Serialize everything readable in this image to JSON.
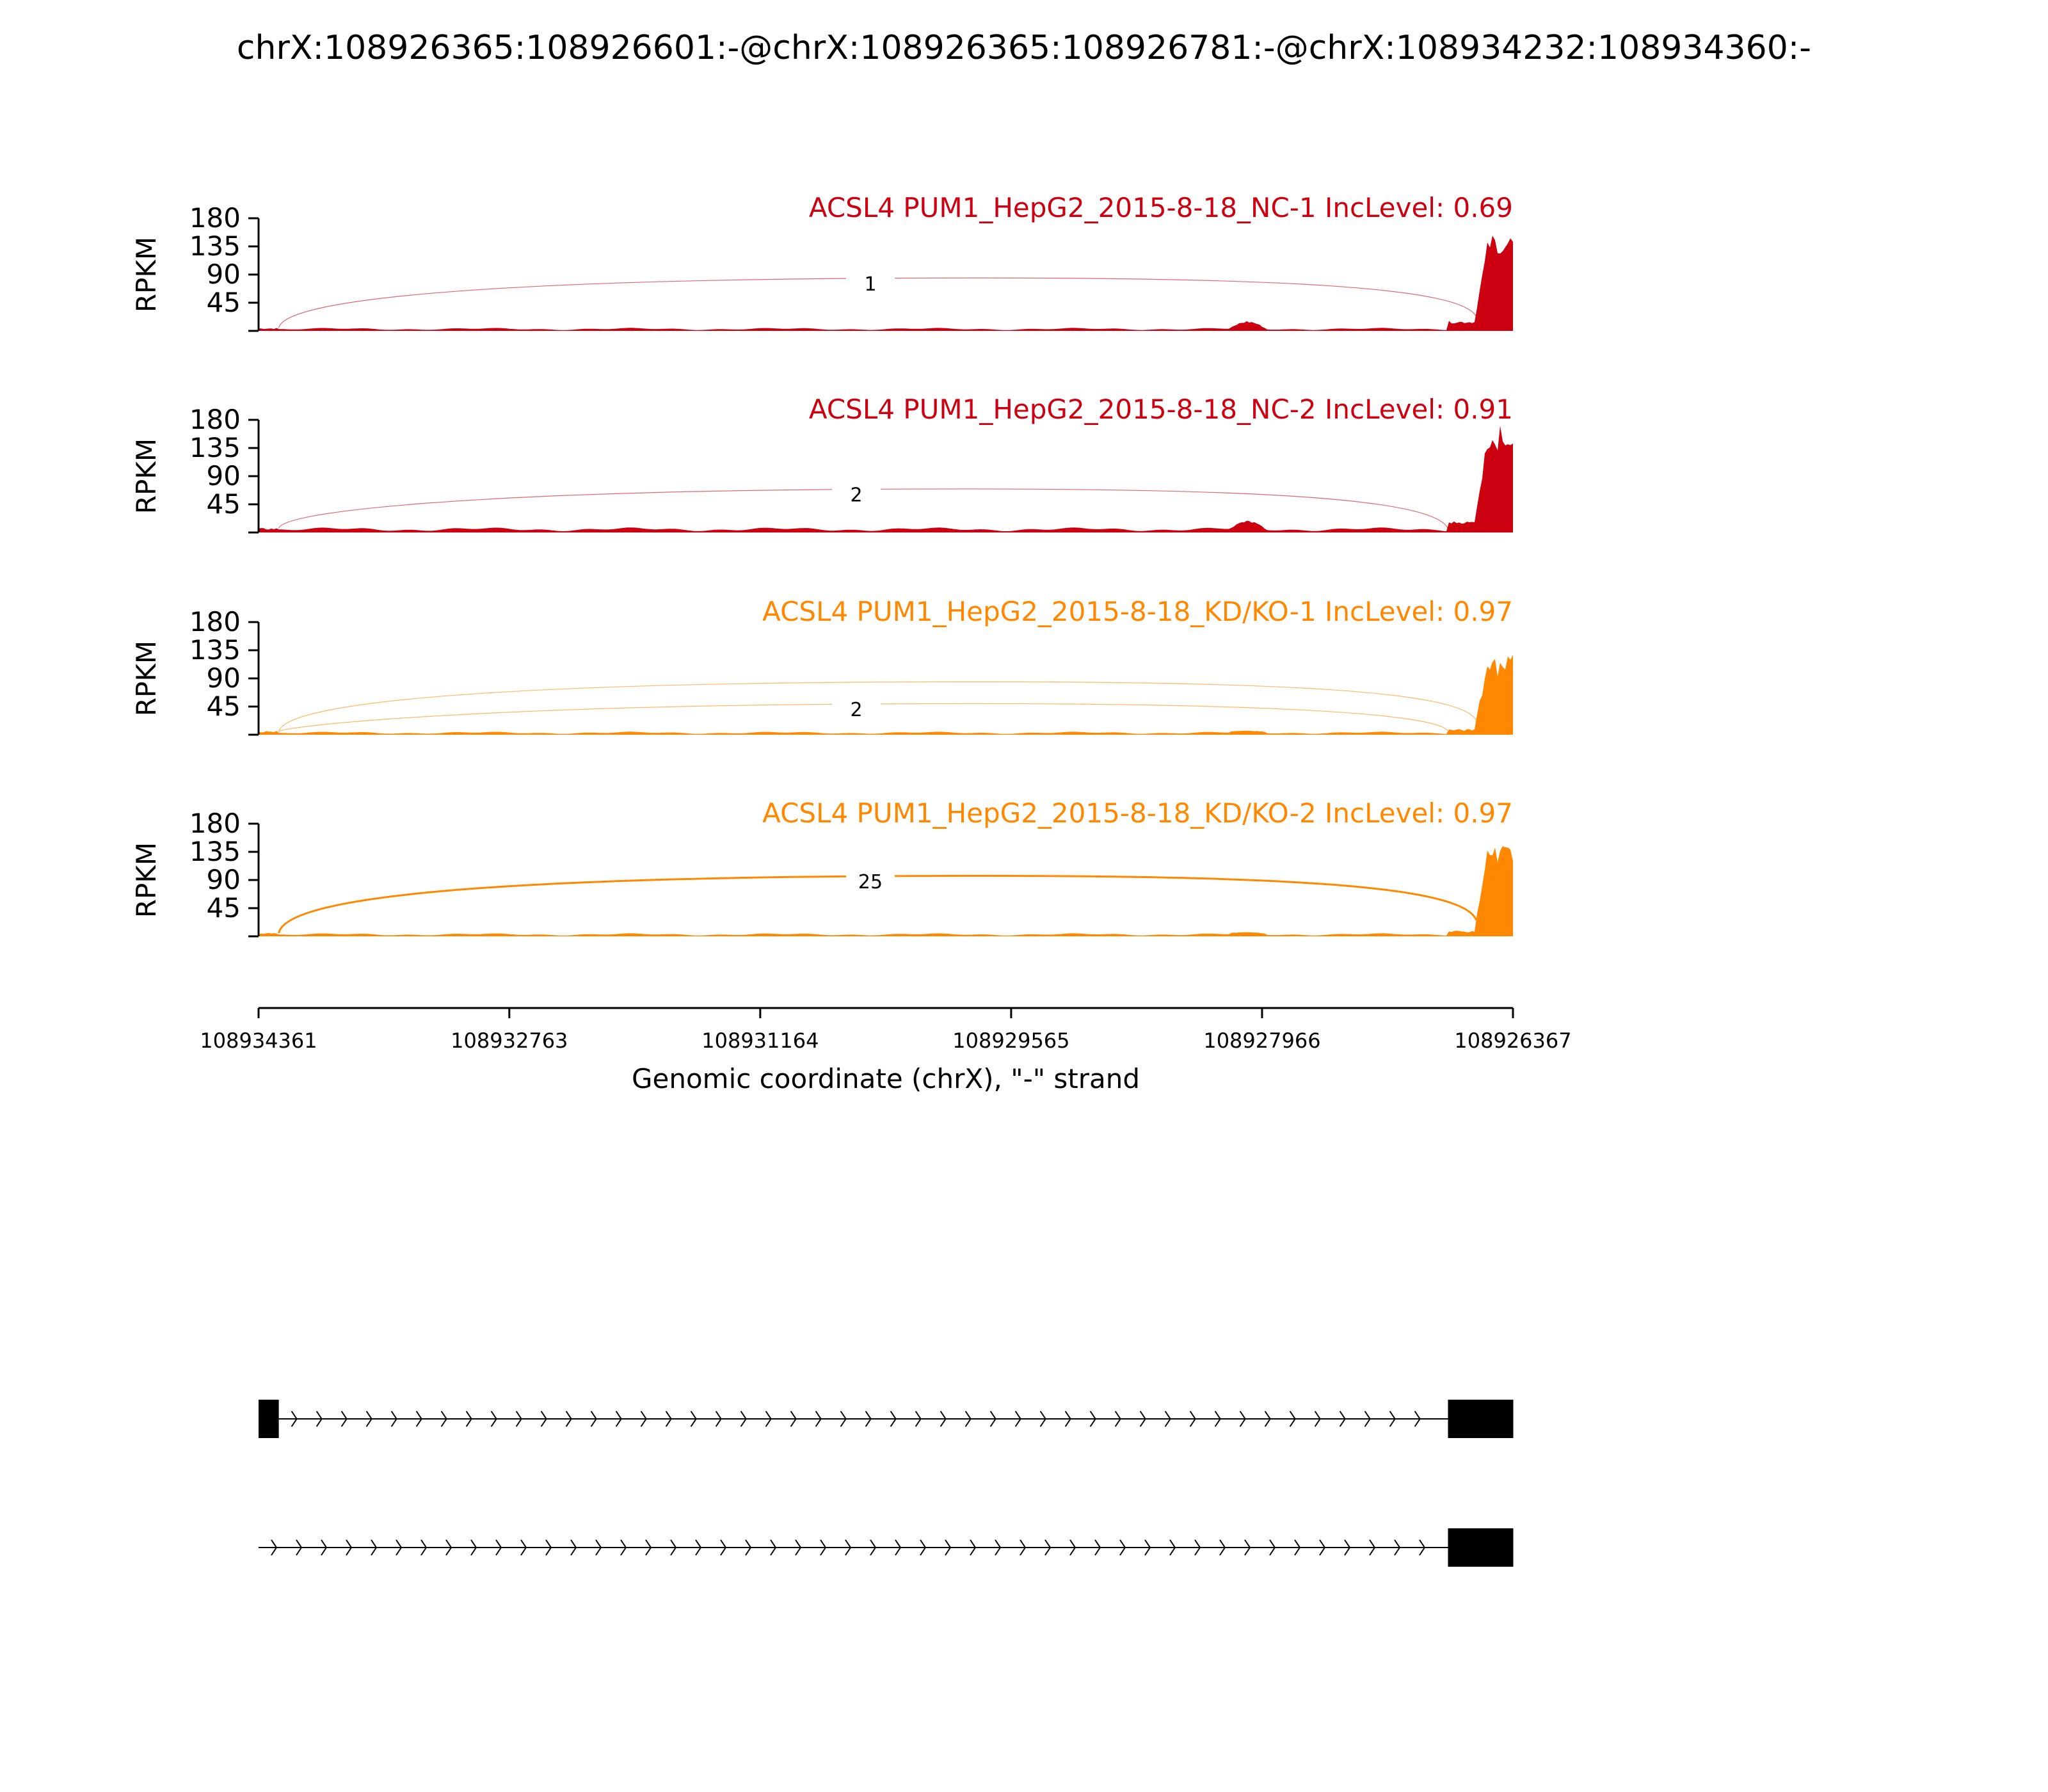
{
  "figure": {
    "title": "chrX:108926365:108926601:-@chrX:108926365:108926781:-@chrX:108934232:108934360:-"
  },
  "chart_data": {
    "type": "area",
    "title": "chrX:108926365:108926601:-@chrX:108926365:108926781:-@chrX:108934232:108934360:-",
    "xlabel": "Genomic coordinate (chrX), \"-\" strand",
    "xlim": [
      108934361,
      108926367
    ],
    "x_reversed": true,
    "x_ticks": [
      "108934361",
      "108932763",
      "108931164",
      "108929565",
      "108927966",
      "108926367"
    ],
    "ylabel": "RPKM",
    "ylim": [
      0,
      180
    ],
    "y_ticks": [
      "180",
      "135",
      "90",
      "45"
    ],
    "colors": {
      "NC": "#cc0011",
      "KD": "#ff8800"
    },
    "tracks": [
      {
        "label": "ACSL4 PUM1_HepG2_2015-8-18_NC-1 IncLevel: 0.69",
        "group": "NC",
        "color": "#cc0011",
        "exon1_peak": 4,
        "intron_level": 3,
        "exon3_peak": 150,
        "junctions": [
          {
            "from": 108934232,
            "to": 108926601,
            "count": "1",
            "height": 80
          }
        ]
      },
      {
        "label": "ACSL4 PUM1_HepG2_2015-8-18_NC-2 IncLevel: 0.91",
        "group": "NC",
        "color": "#cc0011",
        "exon1_peak": 6,
        "intron_level": 5,
        "exon3_peak": 165,
        "junctions": [
          {
            "from": 108934232,
            "to": 108926781,
            "count": "2",
            "height": 65
          }
        ]
      },
      {
        "label": "ACSL4 PUM1_HepG2_2015-8-18_KD/KO-1 IncLevel: 0.97",
        "group": "KD",
        "color": "#ff8800",
        "exon1_peak": 5,
        "intron_level": 3,
        "exon3_peak": 125,
        "junctions": [
          {
            "from": 108934232,
            "to": 108926601,
            "count": "",
            "height": 80
          },
          {
            "from": 108934232,
            "to": 108926781,
            "count": "2",
            "height": 45
          }
        ]
      },
      {
        "label": "ACSL4 PUM1_HepG2_2015-8-18_KD/KO-2 IncLevel: 0.97",
        "group": "KD",
        "color": "#ff8800",
        "exon1_peak": 5,
        "intron_level": 3,
        "exon3_peak": 145,
        "junctions": [
          {
            "from": 108934232,
            "to": 108926601,
            "count": "25",
            "height": 92
          }
        ]
      }
    ],
    "isoforms": [
      {
        "exons": [
          [
            108934361,
            108934232
          ],
          [
            108926781,
            108926365
          ]
        ],
        "intron": [
          108934232,
          108926781
        ]
      },
      {
        "exons": [
          [
            108926781,
            108926365
          ]
        ],
        "intron": [
          108934361,
          108926781
        ]
      }
    ]
  }
}
